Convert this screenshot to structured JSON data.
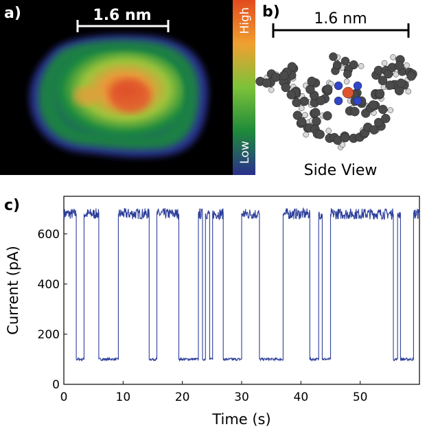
{
  "panel_a": {
    "label": "a)",
    "scale_label": "1.6 nm",
    "colorbar": {
      "high_label": "High",
      "low_label": "Low",
      "stops": [
        "#e24a1e",
        "#f0a030",
        "#7cc23a",
        "#1e8a3a",
        "#1a7a5a",
        "#2b2f8c"
      ]
    }
  },
  "panel_b": {
    "label": "b)",
    "scale_label": "1.6 nm",
    "caption": "Side View",
    "atom_colors": {
      "carbon": "#4a4a4a",
      "hydrogen": "#d9d9d9",
      "nitrogen": "#2f46c8",
      "metal": "#e0552e"
    }
  },
  "panel_c": {
    "label": "c)"
  },
  "chart_data": {
    "type": "line",
    "title": "",
    "xlabel": "Time (s)",
    "ylabel": "Current (pA)",
    "xlim": [
      0,
      60
    ],
    "ylim": [
      0,
      750
    ],
    "xticks": [
      0,
      10,
      20,
      30,
      40,
      50
    ],
    "yticks": [
      0,
      200,
      400,
      600
    ],
    "grid": false,
    "series": [
      {
        "color": "#2c3e9a",
        "high_level": 680,
        "low_level": 100,
        "switch_times": [
          2.1,
          3.4,
          5.9,
          9.2,
          14.4,
          15.7,
          19.4,
          22.7,
          23.4,
          23.9,
          24.6,
          25.1,
          26.9,
          30.0,
          33.0,
          37.0,
          41.5,
          43.0,
          43.6,
          45.0,
          55.6,
          56.3,
          56.8,
          59.0
        ],
        "levels": [
          680,
          100,
          680,
          100,
          680,
          100,
          680,
          100,
          680,
          100,
          680,
          100,
          680,
          100,
          680,
          100,
          680,
          100,
          680,
          100,
          680,
          100,
          680,
          100,
          680
        ]
      }
    ]
  }
}
